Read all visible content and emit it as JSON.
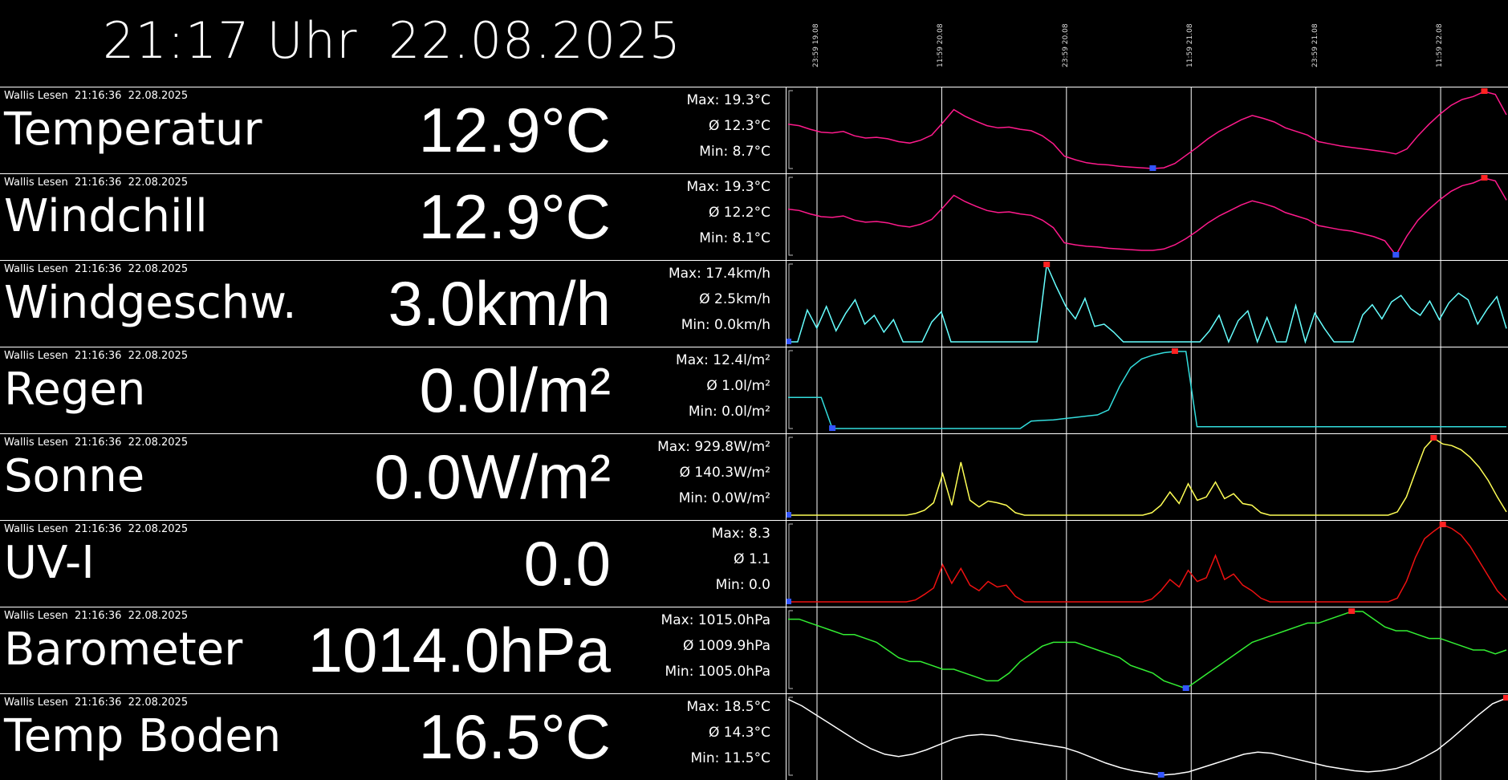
{
  "clock": {
    "time": "21:17 Uhr",
    "date": "22.08.2025"
  },
  "time_ticks": [
    {
      "label": "23:59 19.08",
      "pos": 0.0
    },
    {
      "label": "11:59 20.08",
      "pos": 0.5
    },
    {
      "label": "23:59 20.08",
      "pos": 1.0
    },
    {
      "label": "11:59 21.08",
      "pos": 1.5
    },
    {
      "label": "23:59 21.08",
      "pos": 2.0
    },
    {
      "label": "11:59 22.08",
      "pos": 2.5
    }
  ],
  "rows": [
    {
      "source": "Wallis Lesen  21:16:36  22.08.2025",
      "name": "Temperatur",
      "value": "12.9°C",
      "max": "Max: 19.3°C",
      "avg": "Ø 12.3°C",
      "min": "Min: 8.7°C",
      "color": "#ff1a8c",
      "min_val": 8.7,
      "max_val": 19.3,
      "series": [
        14.8,
        14.6,
        14.1,
        13.7,
        13.6,
        13.8,
        13.2,
        12.9,
        13.0,
        12.8,
        12.4,
        12.2,
        12.6,
        13.3,
        15.0,
        16.8,
        15.9,
        15.2,
        14.6,
        14.3,
        14.4,
        14.1,
        13.9,
        13.2,
        12.1,
        10.4,
        9.9,
        9.5,
        9.3,
        9.2,
        9.0,
        8.9,
        8.8,
        8.7,
        8.8,
        9.4,
        10.5,
        11.6,
        12.8,
        13.8,
        14.6,
        15.4,
        16.0,
        15.6,
        15.1,
        14.3,
        13.8,
        13.3,
        12.4,
        12.1,
        11.8,
        11.6,
        11.4,
        11.2,
        11.0,
        10.7,
        11.4,
        13.2,
        14.8,
        16.2,
        17.4,
        18.2,
        18.6,
        19.3,
        18.9,
        16.1
      ]
    },
    {
      "source": "Wallis Lesen  21:16:36  22.08.2025",
      "name": "Windchill",
      "value": "12.9°C",
      "max": "Max: 19.3°C",
      "avg": "Ø 12.2°C",
      "min": "Min: 8.1°C",
      "color": "#ff1a8c",
      "min_val": 8.1,
      "max_val": 19.3,
      "series": [
        14.8,
        14.6,
        14.1,
        13.7,
        13.6,
        13.8,
        13.2,
        12.9,
        13.0,
        12.8,
        12.4,
        12.2,
        12.6,
        13.3,
        15.0,
        16.8,
        15.9,
        15.2,
        14.6,
        14.3,
        14.4,
        14.1,
        13.9,
        13.2,
        12.1,
        9.9,
        9.6,
        9.4,
        9.3,
        9.1,
        9.0,
        8.9,
        8.8,
        8.8,
        9.0,
        9.6,
        10.5,
        11.6,
        12.8,
        13.8,
        14.6,
        15.4,
        16.0,
        15.6,
        15.1,
        14.3,
        13.8,
        13.3,
        12.4,
        12.1,
        11.8,
        11.6,
        11.2,
        10.8,
        10.2,
        8.1,
        10.9,
        13.2,
        14.8,
        16.2,
        17.4,
        18.2,
        18.6,
        19.3,
        18.9,
        16.1
      ]
    },
    {
      "source": "Wallis Lesen  21:16:36  22.08.2025",
      "name": "Windgeschw.",
      "value": "3.0km/h",
      "max": "Max: 17.4km/h",
      "avg": "Ø 2.5km/h",
      "min": "Min: 0.0km/h",
      "color": "#66ffff",
      "min_val": 0.0,
      "max_val": 17.4,
      "series": [
        0.0,
        0.0,
        7.2,
        3.1,
        8.0,
        2.5,
        6.4,
        9.5,
        4.0,
        6.0,
        2.2,
        5.0,
        0.0,
        0.0,
        0.0,
        4.5,
        6.8,
        0.0,
        0.0,
        0.0,
        0.0,
        0.0,
        0.0,
        0.0,
        0.0,
        0.0,
        0.0,
        17.4,
        12.5,
        8.0,
        5.2,
        9.8,
        3.5,
        4.0,
        2.2,
        0.0,
        0.0,
        0.0,
        0.0,
        0.0,
        0.0,
        0.0,
        0.0,
        0.0,
        2.5,
        6.0,
        0.0,
        4.8,
        7.0,
        0.0,
        5.5,
        0.0,
        0.0,
        8.2,
        0.0,
        6.5,
        3.0,
        0.0,
        0.0,
        0.0,
        6.1,
        8.4,
        5.2,
        9.0,
        10.5,
        7.5,
        6.0,
        9.2,
        5.0,
        8.8,
        11.0,
        9.5,
        4.0,
        7.4,
        10.2,
        3.0
      ]
    },
    {
      "source": "Wallis Lesen  21:16:36  22.08.2025",
      "name": "Regen",
      "value": "0.0l/m²",
      "max": "Max: 12.4l/m²",
      "avg": "Ø 1.0l/m²",
      "min": "Min: 0.0l/m²",
      "color": "#33dddd",
      "min_val": 0.0,
      "max_val": 12.4,
      "series": [
        5.0,
        5.0,
        5.0,
        5.0,
        0.0,
        0.0,
        0.0,
        0.0,
        0.0,
        0.0,
        0.0,
        0.0,
        0.0,
        0.0,
        0.0,
        0.0,
        0.0,
        0.0,
        0.0,
        0.0,
        0.0,
        0.0,
        1.2,
        1.3,
        1.4,
        1.6,
        1.8,
        2.0,
        2.2,
        3.0,
        6.8,
        9.8,
        11.2,
        11.8,
        12.2,
        12.4,
        12.4,
        0.3,
        0.3,
        0.3,
        0.3,
        0.3,
        0.3,
        0.3,
        0.3,
        0.3,
        0.3,
        0.3,
        0.3,
        0.3,
        0.3,
        0.3,
        0.3,
        0.3,
        0.3,
        0.3,
        0.3,
        0.3,
        0.3,
        0.3,
        0.3,
        0.3,
        0.3,
        0.3,
        0.3,
        0.3
      ]
    },
    {
      "source": "Wallis Lesen  21:16:36  22.08.2025",
      "name": "Sonne",
      "value": "0.0W/m²",
      "max": "Max: 929.8W/m²",
      "avg": "Ø 140.3W/m²",
      "min": "Min: 0.0W/m²",
      "color": "#ffff55",
      "min_val": 0.0,
      "max_val": 929.8,
      "series": [
        0,
        0,
        0,
        0,
        0,
        0,
        0,
        0,
        0,
        0,
        0,
        0,
        0,
        0,
        20,
        60,
        150,
        500,
        120,
        640,
        180,
        100,
        170,
        150,
        120,
        30,
        0,
        0,
        0,
        0,
        0,
        0,
        0,
        0,
        0,
        0,
        0,
        0,
        0,
        0,
        30,
        120,
        280,
        140,
        380,
        180,
        220,
        400,
        200,
        260,
        140,
        120,
        30,
        0,
        0,
        0,
        0,
        0,
        0,
        0,
        0,
        0,
        0,
        0,
        0,
        0,
        0,
        40,
        220,
        520,
        810,
        929.8,
        860,
        840,
        790,
        700,
        580,
        420,
        220,
        40
      ]
    },
    {
      "source": "Wallis Lesen  21:16:36  22.08.2025",
      "name": "UV-I",
      "value": "0.0",
      "max": "Max: 8.3",
      "avg": "Ø 1.1",
      "min": "Min: 0.0",
      "color": "#ee1111",
      "min_val": 0.0,
      "max_val": 8.3,
      "series": [
        0,
        0,
        0,
        0,
        0,
        0,
        0,
        0,
        0,
        0,
        0,
        0,
        0,
        0,
        0.2,
        0.8,
        1.5,
        4.0,
        2.0,
        3.6,
        1.8,
        1.2,
        2.2,
        1.6,
        1.8,
        0.6,
        0,
        0,
        0,
        0,
        0,
        0,
        0,
        0,
        0,
        0,
        0,
        0,
        0,
        0,
        0.3,
        1.2,
        2.4,
        1.6,
        3.4,
        2.2,
        2.6,
        5.0,
        2.4,
        3.0,
        1.8,
        1.2,
        0.4,
        0,
        0,
        0,
        0,
        0,
        0,
        0,
        0,
        0,
        0,
        0,
        0,
        0,
        0,
        0.4,
        2.2,
        4.8,
        6.8,
        7.6,
        8.3,
        7.9,
        7.2,
        6.0,
        4.4,
        2.8,
        1.2,
        0.2
      ]
    },
    {
      "source": "Wallis Lesen  21:16:36  22.08.2025",
      "name": "Barometer",
      "value": "1014.0hPa",
      "max": "Max: 1015.0hPa",
      "avg": "Ø 1009.9hPa",
      "min": "Min: 1005.0hPa",
      "color": "#33ee33",
      "min_val": 1005.0,
      "max_val": 1015.0,
      "series": [
        1014.0,
        1014.0,
        1013.5,
        1013.0,
        1012.5,
        1012.0,
        1012.0,
        1011.5,
        1011.0,
        1010.0,
        1009.0,
        1008.5,
        1008.5,
        1008.0,
        1007.5,
        1007.5,
        1007.0,
        1006.5,
        1006.0,
        1006.0,
        1007.0,
        1008.5,
        1009.5,
        1010.5,
        1011.0,
        1011.0,
        1011.0,
        1010.5,
        1010.0,
        1009.5,
        1009.0,
        1008.0,
        1007.5,
        1007.0,
        1006.0,
        1005.5,
        1005.0,
        1006.0,
        1007.0,
        1008.0,
        1009.0,
        1010.0,
        1011.0,
        1011.5,
        1012.0,
        1012.5,
        1013.0,
        1013.5,
        1013.5,
        1014.0,
        1014.5,
        1015.0,
        1015.0,
        1014.0,
        1013.0,
        1012.5,
        1012.5,
        1012.0,
        1011.5,
        1011.5,
        1011.0,
        1010.5,
        1010.0,
        1010.0,
        1009.5,
        1010.0
      ]
    },
    {
      "source": "Wallis Lesen  21:16:36  22.08.2025",
      "name": "Temp Boden",
      "value": "16.5°C",
      "max": "Max: 18.5°C",
      "avg": "Ø 14.3°C",
      "min": "Min: 11.5°C",
      "color": "#ffffff",
      "min_val": 11.5,
      "max_val": 18.5,
      "series": [
        18.4,
        17.8,
        17.0,
        16.2,
        15.4,
        14.6,
        13.9,
        13.4,
        13.2,
        13.4,
        13.8,
        14.3,
        14.8,
        15.1,
        15.2,
        15.1,
        14.8,
        14.6,
        14.4,
        14.2,
        14.0,
        13.6,
        13.1,
        12.6,
        12.2,
        11.9,
        11.7,
        11.5,
        11.6,
        11.8,
        12.2,
        12.6,
        13.0,
        13.4,
        13.6,
        13.5,
        13.2,
        12.9,
        12.6,
        12.3,
        12.1,
        11.9,
        11.8,
        11.9,
        12.1,
        12.5,
        13.1,
        13.8,
        14.8,
        15.9,
        17.0,
        18.0,
        18.5
      ]
    }
  ]
}
